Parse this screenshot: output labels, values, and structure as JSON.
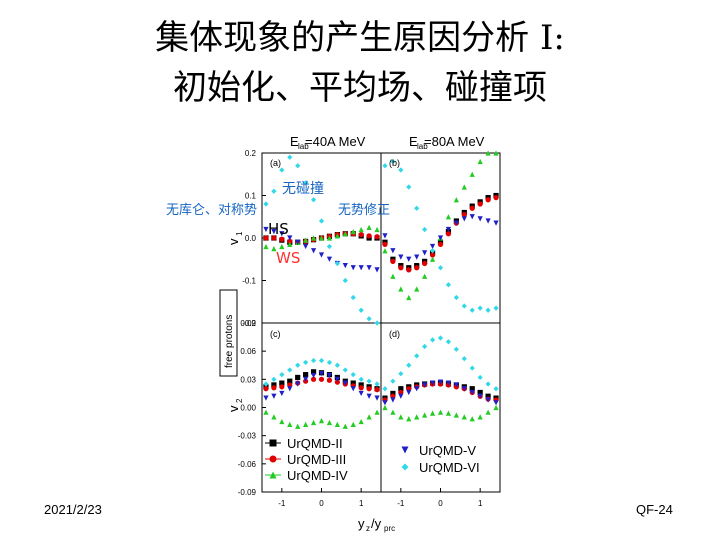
{
  "slide": {
    "title_line1": "集体现象的产生原因分析 I:",
    "title_line2": "初始化、平均场、碰撞项",
    "date": "2021/2/23",
    "page_label": "QF-24",
    "annotations": {
      "no_collision": "无碰撞",
      "no_coulomb_symmetry": "无库仑、对称势",
      "no_momentum_correction": "无势修正",
      "hs": "HS",
      "ws": "WS"
    },
    "colors": {
      "annotation_blue": "#1565c0",
      "hs_black": "#000000",
      "ws_red": "#ff3030"
    }
  },
  "chart_data": {
    "type": "scatter",
    "panel_headers": [
      "E_lab=40A MeV",
      "E_lab=80A MeV"
    ],
    "panel_labels": [
      "(a)",
      "(b)",
      "(c)",
      "(d)"
    ],
    "ylabel_top": "v1",
    "ylabel_bottom": "v2",
    "xlabel": "yz/yprc",
    "side_label": "free protons",
    "ylim_top": [
      -0.2,
      0.2
    ],
    "ylim_bottom": [
      -0.09,
      0.09
    ],
    "xlim_left": [
      -1.5,
      1.5
    ],
    "xlim_right": [
      -1.5,
      1.5
    ],
    "yticks_top": [
      "0.2",
      "0.1",
      "0.0",
      "-0.1",
      "-0.2"
    ],
    "yticks_bottom": [
      "0.09",
      "0.06",
      "0.03",
      "0.00",
      "-0.03",
      "-0.06",
      "-0.09"
    ],
    "xticks": [
      "-1",
      "0",
      "1"
    ],
    "legend": [
      {
        "name": "UrQMD-II",
        "marker": "square",
        "color": "#000000"
      },
      {
        "name": "UrQMD-III",
        "marker": "circle",
        "color": "#e00000"
      },
      {
        "name": "UrQMD-IV",
        "marker": "triangle-up",
        "color": "#22cc22"
      },
      {
        "name": "UrQMD-V",
        "marker": "triangle-down",
        "color": "#2020c8"
      },
      {
        "name": "UrQMD-VI",
        "marker": "diamond",
        "color": "#30d8e8"
      }
    ],
    "panels": {
      "a": {
        "UrQMD-II": {
          "x": [
            -1.4,
            -1.2,
            -1.0,
            -0.8,
            -0.6,
            -0.4,
            -0.2,
            0.0,
            0.2,
            0.4,
            0.6,
            0.8,
            1.0,
            1.2,
            1.4
          ],
          "y": [
            0.0,
            0.0,
            -0.005,
            -0.01,
            -0.01,
            -0.008,
            -0.004,
            0.0,
            0.004,
            0.008,
            0.01,
            0.01,
            0.005,
            0.0,
            0.0
          ]
        },
        "UrQMD-III": {
          "x": [
            -1.4,
            -1.2,
            -1.0,
            -0.8,
            -0.6,
            -0.4,
            -0.2,
            0.0,
            0.2,
            0.4,
            0.6,
            0.8,
            1.0,
            1.2,
            1.4
          ],
          "y": [
            0.0,
            0.0,
            -0.003,
            -0.008,
            -0.01,
            -0.008,
            -0.004,
            0.0,
            0.004,
            0.008,
            0.01,
            0.01,
            0.008,
            0.005,
            0.003
          ]
        },
        "UrQMD-IV": {
          "x": [
            -1.4,
            -1.2,
            -1.0,
            -0.8,
            -0.6,
            -0.4,
            -0.2,
            0.0,
            0.2,
            0.4,
            0.6,
            0.8,
            1.0,
            1.2,
            1.4
          ],
          "y": [
            -0.02,
            -0.025,
            -0.02,
            -0.015,
            -0.01,
            -0.005,
            0.0,
            0.0,
            0.0,
            0.005,
            0.01,
            0.015,
            0.02,
            0.025,
            0.02
          ]
        },
        "UrQMD-V": {
          "x": [
            -1.4,
            -1.2,
            -1.0,
            -0.8,
            -0.6,
            -0.4,
            -0.2,
            0.0,
            0.2,
            0.4,
            0.6,
            0.8,
            1.0,
            1.2,
            1.4
          ],
          "y": [
            0.02,
            0.015,
            0.01,
            0.0,
            -0.01,
            -0.02,
            -0.03,
            -0.04,
            -0.05,
            -0.06,
            -0.065,
            -0.07,
            -0.07,
            -0.07,
            -0.075
          ]
        },
        "UrQMD-VI": {
          "x": [
            -1.4,
            -1.2,
            -1.0,
            -0.8,
            -0.6,
            -0.4,
            -0.2,
            0.0,
            0.2,
            0.4,
            0.6,
            0.8,
            1.0,
            1.2,
            1.4
          ],
          "y": [
            0.08,
            0.11,
            0.16,
            0.19,
            0.17,
            0.13,
            0.09,
            0.04,
            -0.02,
            -0.06,
            -0.1,
            -0.14,
            -0.17,
            -0.19,
            -0.2
          ]
        }
      },
      "b": {
        "UrQMD-II": {
          "x": [
            -1.4,
            -1.2,
            -1.0,
            -0.8,
            -0.6,
            -0.4,
            -0.2,
            0.0,
            0.2,
            0.4,
            0.6,
            0.8,
            1.0,
            1.2,
            1.4
          ],
          "y": [
            -0.01,
            -0.05,
            -0.065,
            -0.07,
            -0.065,
            -0.055,
            -0.035,
            -0.01,
            0.015,
            0.04,
            0.06,
            0.075,
            0.085,
            0.095,
            0.1
          ]
        },
        "UrQMD-III": {
          "x": [
            -1.4,
            -1.2,
            -1.0,
            -0.8,
            -0.6,
            -0.4,
            -0.2,
            0.0,
            0.2,
            0.4,
            0.6,
            0.8,
            1.0,
            1.2,
            1.4
          ],
          "y": [
            -0.015,
            -0.055,
            -0.07,
            -0.075,
            -0.07,
            -0.06,
            -0.04,
            -0.015,
            0.01,
            0.035,
            0.055,
            0.07,
            0.08,
            0.09,
            0.095
          ]
        },
        "UrQMD-IV": {
          "x": [
            -1.4,
            -1.2,
            -1.0,
            -0.8,
            -0.6,
            -0.4,
            -0.2,
            0.0,
            0.2,
            0.4,
            0.6,
            0.8,
            1.0,
            1.2,
            1.4
          ],
          "y": [
            -0.03,
            -0.09,
            -0.12,
            -0.14,
            -0.12,
            -0.09,
            -0.05,
            0.0,
            0.05,
            0.09,
            0.12,
            0.15,
            0.18,
            0.2,
            0.2
          ]
        },
        "UrQMD-V": {
          "x": [
            -1.4,
            -1.2,
            -1.0,
            -0.8,
            -0.6,
            -0.4,
            -0.2,
            0.0,
            0.2,
            0.4,
            0.6,
            0.8,
            1.0,
            1.2,
            1.4
          ],
          "y": [
            0.005,
            -0.03,
            -0.045,
            -0.05,
            -0.045,
            -0.035,
            -0.02,
            0.0,
            0.02,
            0.035,
            0.045,
            0.05,
            0.045,
            0.04,
            0.035
          ]
        },
        "UrQMD-VI": {
          "x": [
            -1.4,
            -1.2,
            -1.0,
            -0.8,
            -0.6,
            -0.4,
            -0.2,
            0.0,
            0.2,
            0.4,
            0.6,
            0.8,
            1.0,
            1.2,
            1.4
          ],
          "y": [
            0.17,
            0.18,
            0.16,
            0.12,
            0.07,
            0.02,
            -0.03,
            -0.07,
            -0.11,
            -0.14,
            -0.16,
            -0.17,
            -0.165,
            -0.17,
            -0.165
          ]
        }
      },
      "c": {
        "UrQMD-II": {
          "x": [
            -1.4,
            -1.2,
            -1.0,
            -0.8,
            -0.6,
            -0.4,
            -0.2,
            0.0,
            0.2,
            0.4,
            0.6,
            0.8,
            1.0,
            1.2,
            1.4
          ],
          "y": [
            0.022,
            0.024,
            0.026,
            0.028,
            0.032,
            0.035,
            0.038,
            0.037,
            0.035,
            0.032,
            0.028,
            0.026,
            0.024,
            0.022,
            0.02
          ]
        },
        "UrQMD-III": {
          "x": [
            -1.4,
            -1.2,
            -1.0,
            -0.8,
            -0.6,
            -0.4,
            -0.2,
            0.0,
            0.2,
            0.4,
            0.6,
            0.8,
            1.0,
            1.2,
            1.4
          ],
          "y": [
            0.02,
            0.021,
            0.022,
            0.024,
            0.026,
            0.028,
            0.03,
            0.03,
            0.029,
            0.027,
            0.025,
            0.023,
            0.021,
            0.02,
            0.019
          ]
        },
        "UrQMD-IV": {
          "x": [
            -1.4,
            -1.2,
            -1.0,
            -0.8,
            -0.6,
            -0.4,
            -0.2,
            0.0,
            0.2,
            0.4,
            0.6,
            0.8,
            1.0,
            1.2,
            1.4
          ],
          "y": [
            -0.005,
            -0.01,
            -0.015,
            -0.018,
            -0.02,
            -0.018,
            -0.016,
            -0.014,
            -0.016,
            -0.018,
            -0.02,
            -0.018,
            -0.015,
            -0.01,
            -0.005
          ]
        },
        "UrQMD-V": {
          "x": [
            -1.4,
            -1.2,
            -1.0,
            -0.8,
            -0.6,
            -0.4,
            -0.2,
            0.0,
            0.2,
            0.4,
            0.6,
            0.8,
            1.0,
            1.2,
            1.4
          ],
          "y": [
            0.01,
            0.012,
            0.015,
            0.02,
            0.025,
            0.03,
            0.034,
            0.036,
            0.034,
            0.03,
            0.026,
            0.02,
            0.015,
            0.012,
            0.01
          ]
        },
        "UrQMD-VI": {
          "x": [
            -1.4,
            -1.2,
            -1.0,
            -0.8,
            -0.6,
            -0.4,
            -0.2,
            0.0,
            0.2,
            0.4,
            0.6,
            0.8,
            1.0,
            1.2,
            1.4
          ],
          "y": [
            0.025,
            0.03,
            0.035,
            0.04,
            0.045,
            0.048,
            0.05,
            0.05,
            0.048,
            0.045,
            0.04,
            0.035,
            0.03,
            0.028,
            0.025
          ]
        }
      },
      "d": {
        "UrQMD-II": {
          "x": [
            -1.4,
            -1.2,
            -1.0,
            -0.8,
            -0.6,
            -0.4,
            -0.2,
            0.0,
            0.2,
            0.4,
            0.6,
            0.8,
            1.0,
            1.2,
            1.4
          ],
          "y": [
            0.01,
            0.015,
            0.02,
            0.022,
            0.024,
            0.025,
            0.026,
            0.026,
            0.025,
            0.024,
            0.022,
            0.02,
            0.016,
            0.012,
            0.01
          ]
        },
        "UrQMD-III": {
          "x": [
            -1.4,
            -1.2,
            -1.0,
            -0.8,
            -0.6,
            -0.4,
            -0.2,
            0.0,
            0.2,
            0.4,
            0.6,
            0.8,
            1.0,
            1.2,
            1.4
          ],
          "y": [
            0.008,
            0.012,
            0.016,
            0.02,
            0.022,
            0.024,
            0.025,
            0.025,
            0.024,
            0.022,
            0.02,
            0.016,
            0.012,
            0.009,
            0.008
          ]
        },
        "UrQMD-IV": {
          "x": [
            -1.4,
            -1.2,
            -1.0,
            -0.8,
            -0.6,
            -0.4,
            -0.2,
            0.0,
            0.2,
            0.4,
            0.6,
            0.8,
            1.0,
            1.2,
            1.4
          ],
          "y": [
            0.0,
            -0.005,
            -0.01,
            -0.012,
            -0.01,
            -0.008,
            -0.006,
            -0.005,
            -0.006,
            -0.008,
            -0.01,
            -0.012,
            -0.01,
            -0.005,
            0.0
          ]
        },
        "UrQMD-V": {
          "x": [
            -1.4,
            -1.2,
            -1.0,
            -0.8,
            -0.6,
            -0.4,
            -0.2,
            0.0,
            0.2,
            0.4,
            0.6,
            0.8,
            1.0,
            1.2,
            1.4
          ],
          "y": [
            0.005,
            0.008,
            0.012,
            0.016,
            0.02,
            0.024,
            0.026,
            0.027,
            0.026,
            0.024,
            0.02,
            0.016,
            0.012,
            0.008,
            0.005
          ]
        },
        "UrQMD-VI": {
          "x": [
            -1.4,
            -1.2,
            -1.0,
            -0.8,
            -0.6,
            -0.4,
            -0.2,
            0.0,
            0.2,
            0.4,
            0.6,
            0.8,
            1.0,
            1.2,
            1.4
          ],
          "y": [
            0.02,
            0.028,
            0.036,
            0.045,
            0.055,
            0.065,
            0.072,
            0.074,
            0.07,
            0.062,
            0.052,
            0.042,
            0.032,
            0.025,
            0.02
          ]
        }
      }
    }
  }
}
